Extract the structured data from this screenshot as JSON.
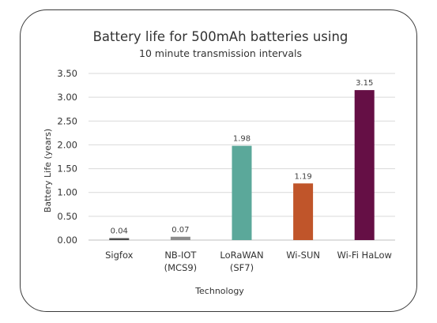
{
  "chart_data": {
    "type": "bar",
    "title": "Battery life for 500mAh batteries using",
    "subtitle": "10 minute transmission intervals",
    "xlabel": "Technology",
    "ylabel": "Battery Life (years)",
    "ylim": [
      0,
      3.5
    ],
    "ytick_step": 0.5,
    "ytick_labels": [
      "0.00",
      "0.50",
      "1.00",
      "1.50",
      "2.00",
      "2.50",
      "3.00",
      "3.50"
    ],
    "grid": true,
    "legend": "none",
    "categories": [
      [
        "Sigfox"
      ],
      [
        "NB-IOT",
        "(MCS9)"
      ],
      [
        "LoRaWAN",
        "(SF7)"
      ],
      [
        "Wi-SUN"
      ],
      [
        "Wi-Fi HaLow"
      ]
    ],
    "values": [
      0.04,
      0.07,
      1.98,
      1.19,
      3.15
    ],
    "data_labels": [
      "0.04",
      "0.07",
      "1.98",
      "1.19",
      "3.15"
    ],
    "colors": [
      "#4a4a4a",
      "#8c8c8c",
      "#5ba89a",
      "#c0552a",
      "#650f45"
    ]
  }
}
